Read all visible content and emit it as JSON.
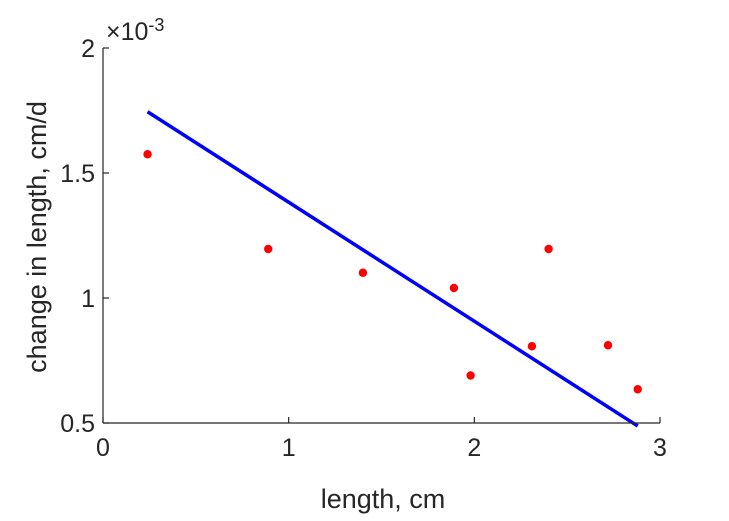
{
  "chart_data": {
    "type": "scatter",
    "xlabel": "length, cm",
    "ylabel": "change in length, cm/d",
    "y_multiplier": {
      "prefix": "×10",
      "exponent": "-3"
    },
    "xlim": [
      0,
      3
    ],
    "ylim": [
      0.0005,
      0.002
    ],
    "x_ticks": [
      {
        "value": 0,
        "label": "0"
      },
      {
        "value": 1,
        "label": "1"
      },
      {
        "value": 2,
        "label": "2"
      },
      {
        "value": 3,
        "label": "3"
      }
    ],
    "y_ticks": [
      {
        "value": 0.0005,
        "label": "0.5"
      },
      {
        "value": 0.001,
        "label": "1"
      },
      {
        "value": 0.0015,
        "label": "1.5"
      },
      {
        "value": 0.002,
        "label": "2"
      }
    ],
    "grid": false,
    "series": [
      {
        "type": "scatter",
        "color": "#ff0000",
        "points": [
          {
            "x": 0.24,
            "y": 0.001575
          },
          {
            "x": 0.89,
            "y": 0.001196
          },
          {
            "x": 1.4,
            "y": 0.001101
          },
          {
            "x": 1.89,
            "y": 0.00104
          },
          {
            "x": 1.98,
            "y": 0.00069
          },
          {
            "x": 2.31,
            "y": 0.000807
          },
          {
            "x": 2.4,
            "y": 0.001196
          },
          {
            "x": 2.72,
            "y": 0.000811
          },
          {
            "x": 2.88,
            "y": 0.000635
          }
        ]
      },
      {
        "type": "line",
        "color": "#0000ff",
        "points": [
          {
            "x": 0.24,
            "y": 0.001745
          },
          {
            "x": 2.88,
            "y": 0.000488
          }
        ]
      }
    ]
  }
}
